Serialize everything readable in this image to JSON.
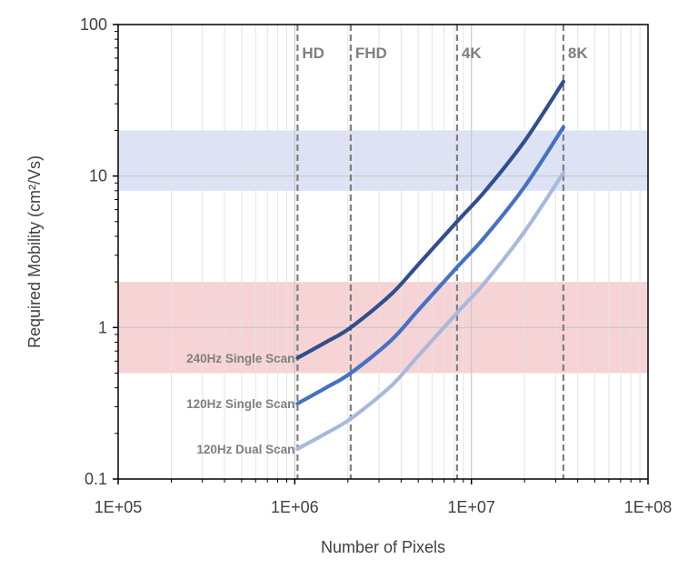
{
  "chart_data": {
    "type": "line",
    "xlabel": "Number of Pixels",
    "ylabel": "Required Mobility (cm²/Vs)",
    "xscale": "log",
    "yscale": "log",
    "xlim": [
      100000,
      100000000
    ],
    "ylim": [
      0.1,
      100
    ],
    "x_ticks": [
      "1E+05",
      "1E+06",
      "1E+07",
      "1E+08"
    ],
    "y_ticks": [
      "0.1",
      "1",
      "10",
      "100"
    ],
    "grid": "on",
    "bands": [
      {
        "range": [
          8,
          20
        ],
        "color": "#dde3f4"
      },
      {
        "range": [
          0.5,
          2
        ],
        "color": "#f6d3d5"
      }
    ],
    "markers": [
      {
        "label": "HD",
        "x": 1036800
      },
      {
        "label": "FHD",
        "x": 2073600
      },
      {
        "label": "4K",
        "x": 8294400
      },
      {
        "label": "8K",
        "x": 33177600
      }
    ],
    "series": [
      {
        "name": "240Hz Single Scan",
        "color": "#2f4f8f",
        "points": [
          [
            1036800,
            0.63
          ],
          [
            1500000,
            0.8
          ],
          [
            2073600,
            1.0
          ],
          [
            3500000,
            1.65
          ],
          [
            5000000,
            2.6
          ],
          [
            8294400,
            5.0
          ],
          [
            12000000,
            8.0
          ],
          [
            20000000,
            17
          ],
          [
            33177600,
            42
          ]
        ]
      },
      {
        "name": "120Hz Single Scan",
        "color": "#4472c4",
        "points": [
          [
            1036800,
            0.315
          ],
          [
            1500000,
            0.4
          ],
          [
            2073600,
            0.5
          ],
          [
            3500000,
            0.82
          ],
          [
            5000000,
            1.3
          ],
          [
            8294400,
            2.5
          ],
          [
            12000000,
            4.0
          ],
          [
            20000000,
            8.5
          ],
          [
            33177600,
            21
          ]
        ]
      },
      {
        "name": "120Hz Dual Scan",
        "color": "#a9b9dd",
        "points": [
          [
            1036800,
            0.158
          ],
          [
            1500000,
            0.2
          ],
          [
            2073600,
            0.25
          ],
          [
            3500000,
            0.41
          ],
          [
            5000000,
            0.65
          ],
          [
            8294400,
            1.25
          ],
          [
            12000000,
            2.0
          ],
          [
            20000000,
            4.3
          ],
          [
            33177600,
            10.5
          ]
        ]
      }
    ]
  }
}
